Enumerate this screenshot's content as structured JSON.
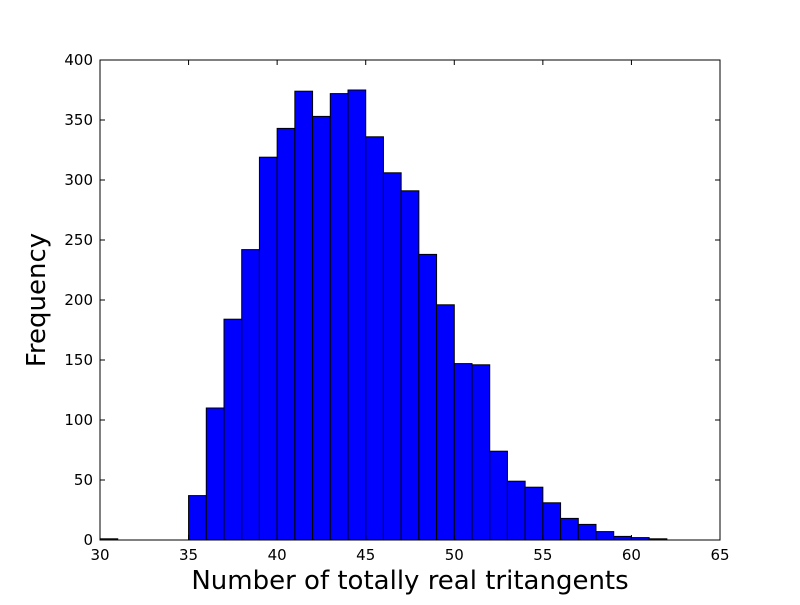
{
  "chart_data": {
    "type": "bar",
    "title": "",
    "xlabel": "Number of totally real tritangents",
    "ylabel": "Frequency",
    "xlim": [
      30,
      65
    ],
    "ylim": [
      0,
      400
    ],
    "xticks": [
      30,
      35,
      40,
      45,
      50,
      55,
      60,
      65
    ],
    "yticks": [
      0,
      50,
      100,
      150,
      200,
      250,
      300,
      350,
      400
    ],
    "bin_edges": [
      30,
      31,
      32,
      33,
      34,
      35,
      36,
      37,
      38,
      39,
      40,
      41,
      42,
      43,
      44,
      45,
      46,
      47,
      48,
      49,
      50,
      51,
      52,
      53,
      54,
      55,
      56,
      57,
      58,
      59,
      60,
      61,
      62,
      63,
      64,
      65
    ],
    "values": [
      1,
      0,
      0,
      0,
      0,
      37,
      110,
      184,
      242,
      319,
      343,
      374,
      353,
      372,
      375,
      336,
      306,
      291,
      238,
      196,
      147,
      146,
      74,
      49,
      44,
      31,
      18,
      13,
      7,
      3,
      2,
      1,
      0,
      0,
      0
    ],
    "bar_color": "#0000ff",
    "edge_color": "#000000",
    "grid": false
  }
}
